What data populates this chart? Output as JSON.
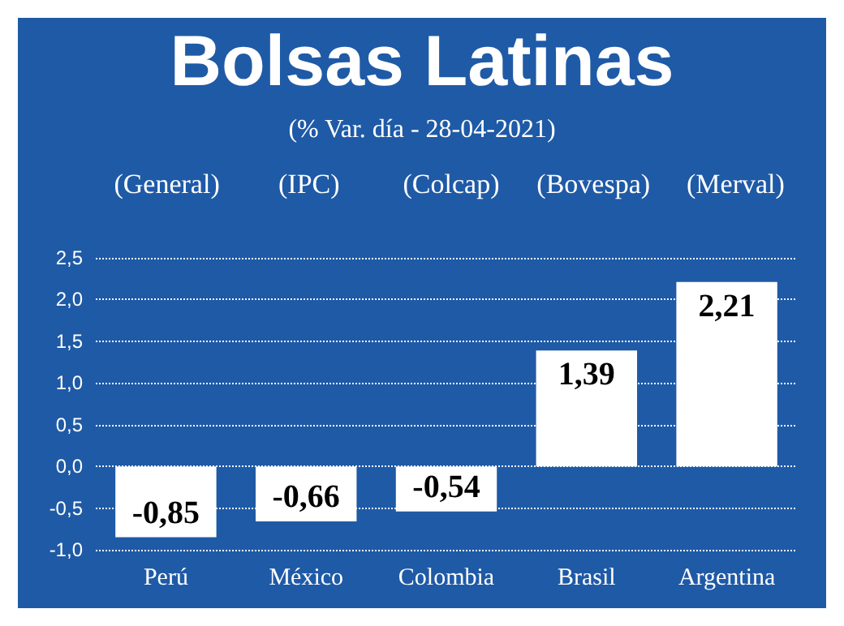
{
  "chart_data": {
    "type": "bar",
    "title": "Bolsas Latinas",
    "subtitle": "(% Var. día - 28-04-2021)",
    "categories": [
      "Perú",
      "México",
      "Colombia",
      "Brasil",
      "Argentina"
    ],
    "values": [
      -0.85,
      -0.66,
      -0.54,
      1.39,
      2.21
    ],
    "value_labels": [
      "-0,85",
      "-0,66",
      "-0,54",
      "1,39",
      "2,21"
    ],
    "color": "#ffffff",
    "annotations": [
      "(General)",
      "(IPC)",
      "(Colcap)",
      "(Bovespa)",
      "(Merval)"
    ],
    "ylim": [
      -1,
      2.5
    ],
    "yticks": [
      {
        "value": -1,
        "label": "-1,0"
      },
      {
        "value": -0.5,
        "label": "-0,5"
      },
      {
        "value": 0,
        "label": "0,0"
      },
      {
        "value": 0.5,
        "label": "0,5"
      },
      {
        "value": 1,
        "label": "1,0"
      },
      {
        "value": 1.5,
        "label": "1,5"
      },
      {
        "value": 2,
        "label": "2,0"
      },
      {
        "value": 2.5,
        "label": "2,5"
      }
    ],
    "grid": "y"
  }
}
